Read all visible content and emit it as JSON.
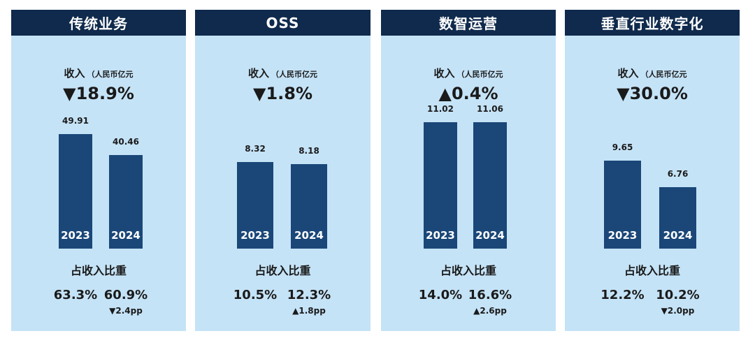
{
  "units_label": "（人民币亿元",
  "revenue_label": "收入",
  "share_label": "占收入比重",
  "colors": {
    "header": "#0f2a4c",
    "panel": "#c5e3f7",
    "bar": "#1a4778"
  },
  "chart_data": [
    {
      "type": "bar",
      "title": "传统业务",
      "categories": [
        "2023",
        "2024"
      ],
      "values": [
        49.91,
        40.46
      ],
      "value_labels": [
        "49.91",
        "40.46"
      ],
      "change": "▼18.9%",
      "share": [
        "63.3%",
        "60.9%"
      ],
      "share_change": "▼2.4pp"
    },
    {
      "type": "bar",
      "title": "OSS",
      "categories": [
        "2023",
        "2024"
      ],
      "values": [
        8.32,
        8.18
      ],
      "value_labels": [
        "8.32",
        "8.18"
      ],
      "change": "▼1.8%",
      "share": [
        "10.5%",
        "12.3%"
      ],
      "share_change": "▲1.8pp"
    },
    {
      "type": "bar",
      "title": "数智运营",
      "categories": [
        "2023",
        "2024"
      ],
      "values": [
        11.02,
        11.06
      ],
      "value_labels": [
        "11.02",
        "11.06"
      ],
      "change": "▲0.4%",
      "share": [
        "14.0%",
        "16.6%"
      ],
      "share_change": "▲2.6pp"
    },
    {
      "type": "bar",
      "title": "垂直行业数字化",
      "categories": [
        "2023",
        "2024"
      ],
      "values": [
        9.65,
        6.76
      ],
      "value_labels": [
        "9.65",
        "6.76"
      ],
      "change": "▼30.0%",
      "share": [
        "12.2%",
        "10.2%"
      ],
      "share_change": "▼2.0pp"
    }
  ]
}
